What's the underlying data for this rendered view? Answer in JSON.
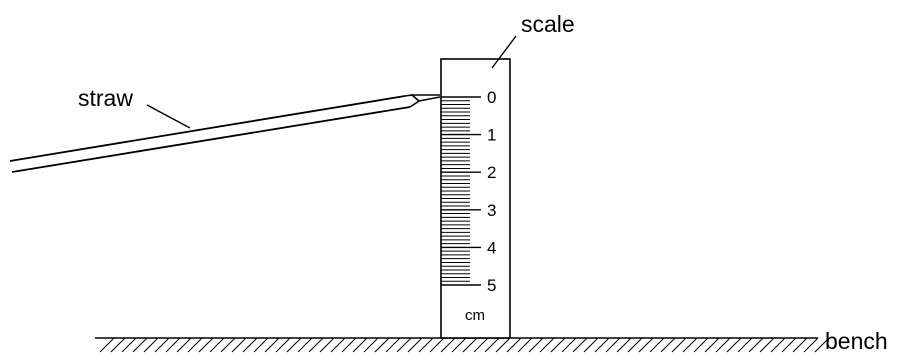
{
  "labels": {
    "scale": "scale",
    "straw": "straw",
    "bench": "bench",
    "unit": "cm"
  },
  "scale": {
    "major_ticks": [
      "0",
      "1",
      "2",
      "3",
      "4",
      "5"
    ],
    "minor_divisions_per_cm": 10
  },
  "colors": {
    "ink": "#000000",
    "background": "#ffffff"
  }
}
